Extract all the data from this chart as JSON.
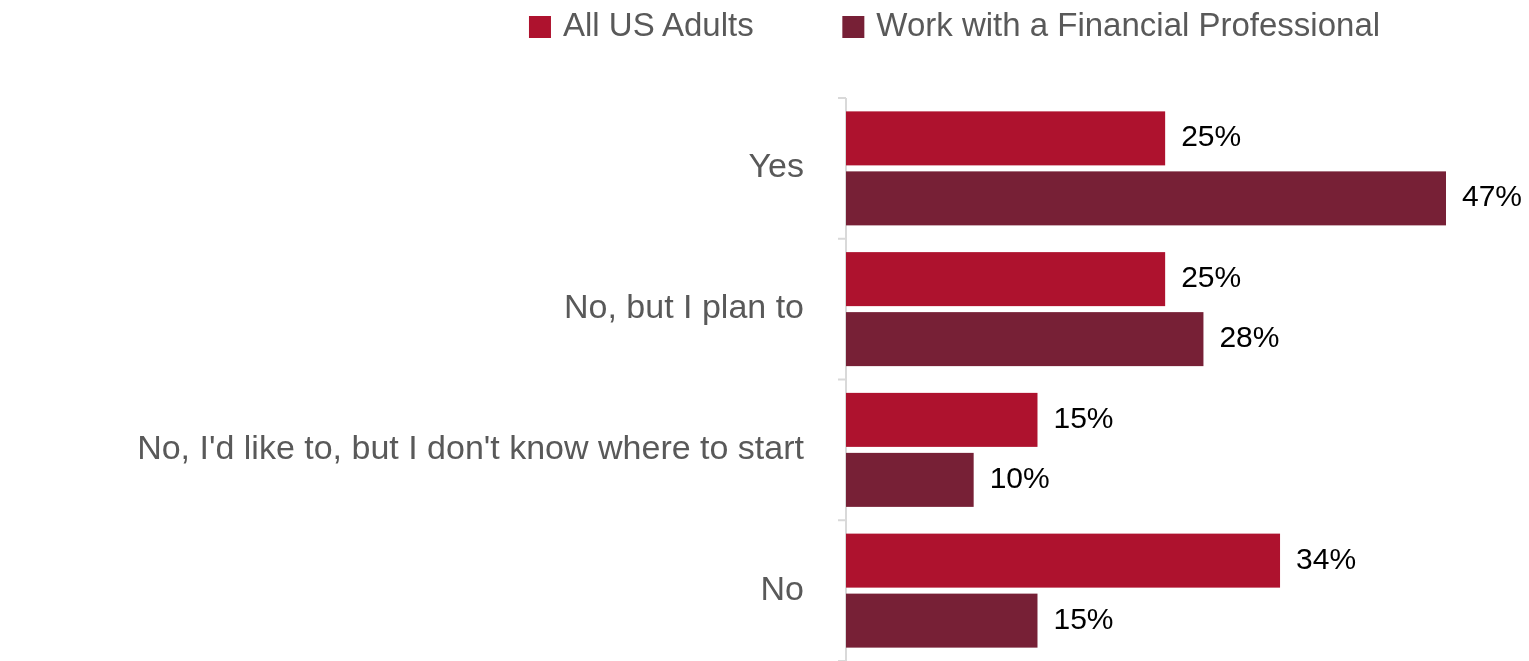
{
  "chart_data": {
    "type": "bar",
    "orientation": "horizontal",
    "legend": "top",
    "categories": [
      "Yes",
      "No, but I plan to",
      "No, I'd like to, but I don't know where to start",
      "No"
    ],
    "series": [
      {
        "name": "All US Adults",
        "color": "#ae122e",
        "values": [
          25,
          25,
          15,
          34
        ],
        "value_labels": [
          "25%",
          "25%",
          "15%",
          "34%"
        ]
      },
      {
        "name": "Work with a Financial Professional",
        "color": "#772036",
        "values": [
          47,
          28,
          10,
          15
        ],
        "value_labels": [
          "47%",
          "28%",
          "10%",
          "15%"
        ]
      }
    ]
  }
}
